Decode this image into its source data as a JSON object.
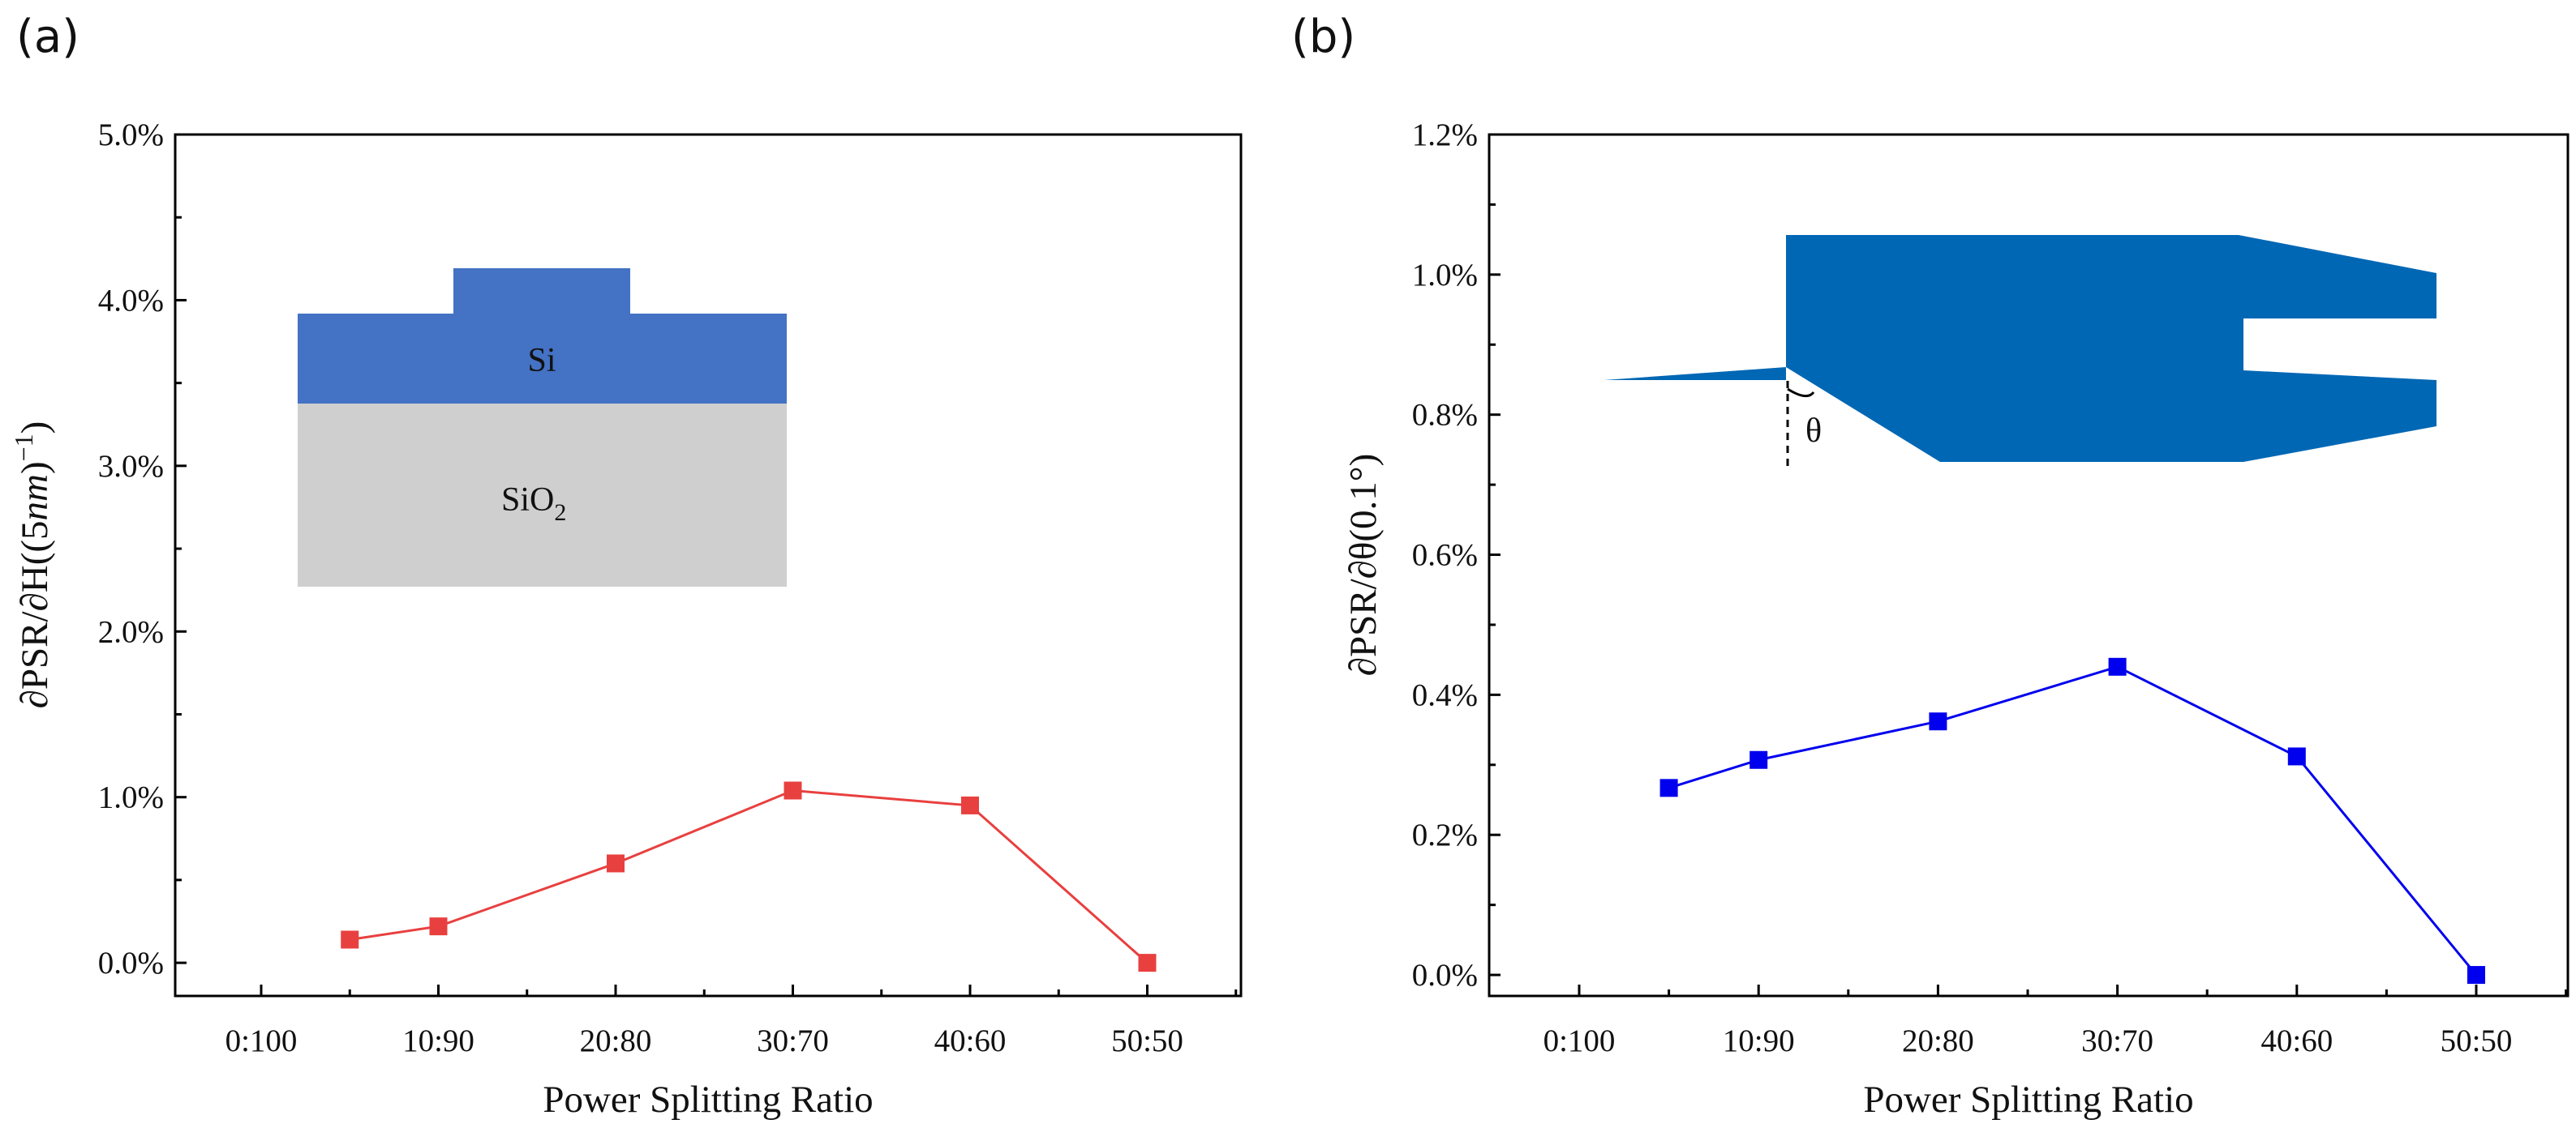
{
  "panel_labels": [
    "(a)",
    "(b)"
  ],
  "chart_data": [
    {
      "type": "line",
      "categories": [
        "0:100",
        "10:90",
        "20:80",
        "30:70",
        "40:60",
        "50:50"
      ],
      "x_category_index": [
        0.5,
        1,
        2,
        3,
        4,
        5
      ],
      "series": [
        {
          "color": "#e8403f",
          "values": [
            0.14,
            0.22,
            0.6,
            1.04,
            0.95,
            0.0
          ]
        }
      ],
      "xlabel": "Power Splitting Ratio",
      "ylabel": "∂PSR/∂H((5nm)⁻¹)",
      "ylabel_parts": {
        "main": "∂PSR/∂H((5",
        "italic": "nm",
        "tail": ")",
        "sup": "−1",
        "close": ")"
      },
      "ylim": [
        -0.2,
        5.0
      ],
      "yticks": [
        "0.0%",
        "1.0%",
        "2.0%",
        "3.0%",
        "4.0%",
        "5.0%"
      ],
      "ytick_values": [
        0,
        1,
        2,
        3,
        4,
        5
      ],
      "inset": {
        "top_label": "Si",
        "bottom_label": "SiO",
        "bottom_sub": "2",
        "si_color": "#4472c4",
        "sio2_color": "#d0cfd0"
      }
    },
    {
      "type": "line",
      "categories": [
        "0:100",
        "10:90",
        "20:80",
        "30:70",
        "40:60",
        "50:50"
      ],
      "x_category_index": [
        0.5,
        1,
        2,
        3,
        4,
        5
      ],
      "series": [
        {
          "color": "#0000ee",
          "values": [
            0.267,
            0.307,
            0.362,
            0.44,
            0.312,
            0.0
          ]
        }
      ],
      "xlabel": "Power Splitting Ratio",
      "ylabel": "∂PSR/∂θ(0.1°)",
      "ylim": [
        -0.03,
        1.2
      ],
      "yticks": [
        "0.0%",
        "0.2%",
        "0.4%",
        "0.6%",
        "0.8%",
        "1.0%",
        "1.2%"
      ],
      "ytick_values": [
        0,
        0.2,
        0.4,
        0.6,
        0.8,
        1.0,
        1.2
      ],
      "inset": {
        "angle_label": "θ",
        "shape_color": "#0067b4"
      }
    }
  ]
}
